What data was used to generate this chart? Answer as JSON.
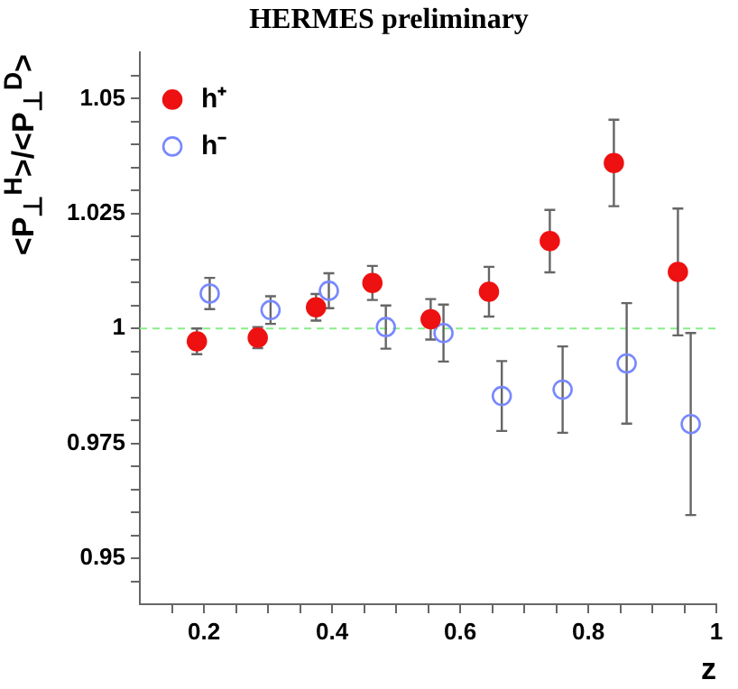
{
  "chart_data": {
    "type": "scatter",
    "title": "HERMES preliminary",
    "xlabel": "z",
    "ylabel": "<P$_{⊥}$$^{H}$>/<P$_{⊥}$$^{D}$>",
    "xlim": [
      0.1,
      1
    ],
    "xticks": [
      {
        "value": 0.15,
        "label": null
      },
      0.2,
      {
        "value": 0.25,
        "label": null
      },
      {
        "value": 0.3,
        "label": null
      },
      {
        "value": 0.35,
        "label": null
      },
      0.4,
      {
        "value": 0.45,
        "label": null
      },
      {
        "value": 0.5,
        "label": null
      },
      {
        "value": 0.55,
        "label": null
      },
      0.6,
      {
        "value": 0.65,
        "label": null
      },
      {
        "value": 0.7,
        "label": null
      },
      {
        "value": 0.75,
        "label": null
      },
      0.8,
      {
        "value": 0.85,
        "label": null
      },
      {
        "value": 0.9,
        "label": null
      },
      {
        "value": 0.95,
        "label": null
      },
      1
    ],
    "ylim": [
      0.94,
      1.06
    ],
    "yticks": [
      {
        "value": 0.945,
        "label": null
      },
      0.95,
      {
        "value": 0.955,
        "label": null
      },
      {
        "value": 0.96,
        "label": null
      },
      {
        "value": 0.965,
        "label": null
      },
      {
        "value": 0.97,
        "label": null
      },
      0.975,
      {
        "value": 0.98,
        "label": null
      },
      {
        "value": 0.985,
        "label": null
      },
      {
        "value": 0.99,
        "label": null
      },
      {
        "value": 0.995,
        "label": null
      },
      1,
      {
        "value": 1.005,
        "label": null
      },
      {
        "value": 1.01,
        "label": null
      },
      {
        "value": 1.015,
        "label": null
      },
      {
        "value": 1.02,
        "label": null
      },
      1.025,
      {
        "value": 1.03,
        "label": null
      },
      {
        "value": 1.035,
        "label": null
      },
      {
        "value": 1.04,
        "label": null
      },
      {
        "value": 1.045,
        "label": null
      },
      1.05,
      {
        "value": 1.055,
        "label": null
      }
    ],
    "grid": false,
    "legend": "top left",
    "marker": "circle",
    "ref_lines": [
      {
        "axis": "y",
        "value": 1,
        "color": "#88ee88",
        "line_style": "dashed"
      }
    ],
    "series": [
      {
        "name": "h⁺",
        "color": "#ee1111",
        "x": [
          0.189,
          0.284,
          0.375,
          0.463,
          0.554,
          0.645,
          0.74,
          0.84,
          0.94
        ],
        "values": [
          0.9972,
          0.998,
          1.0046,
          1.0099,
          1.002,
          1.008,
          1.019,
          1.036,
          1.0123
        ],
        "errors": [
          0.0028,
          0.0023,
          0.0029,
          0.0037,
          0.0044,
          0.0054,
          0.0068,
          0.0094,
          0.0138
        ]
      },
      {
        "name": "h⁻",
        "color": "#7788ff",
        "x": [
          0.209,
          0.304,
          0.395,
          0.484,
          0.574,
          0.665,
          0.76,
          0.86,
          0.96
        ],
        "values": [
          1.0076,
          1.004,
          1.0082,
          1.0003,
          0.999,
          0.9853,
          0.9867,
          0.9924,
          0.9792
        ],
        "errors": [
          0.0034,
          0.003,
          0.0038,
          0.0047,
          0.0062,
          0.0076,
          0.0094,
          0.0131,
          0.0198
        ]
      }
    ]
  }
}
